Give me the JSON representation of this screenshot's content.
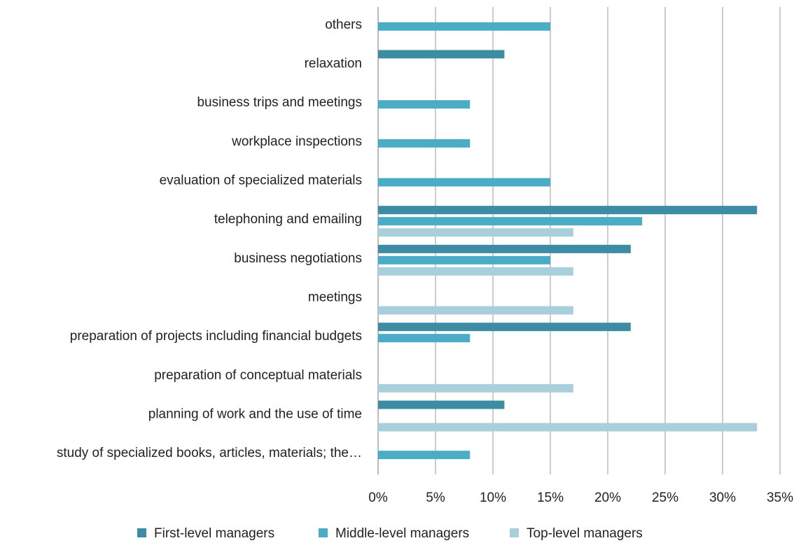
{
  "chart_data": {
    "type": "barh",
    "categories": [
      "others",
      "relaxation",
      "business trips and meetings",
      "workplace inspections",
      "evaluation of specialized materials",
      "telephoning and emailing",
      "business negotiations",
      "meetings",
      "preparation of projects including financial budgets",
      "preparation of conceptual materials",
      "planning of work and the use of time",
      "study of specialized books, articles, materials; the…"
    ],
    "series": [
      {
        "name": "First-level managers",
        "color": "#3d8ca3",
        "values": [
          null,
          11,
          null,
          null,
          null,
          33,
          22,
          null,
          22,
          null,
          11,
          null
        ]
      },
      {
        "name": "Middle-level managers",
        "color": "#4bacc6",
        "values": [
          15,
          null,
          8,
          8,
          15,
          23,
          15,
          null,
          8,
          null,
          null,
          8
        ]
      },
      {
        "name": "Top-level managers",
        "color": "#a9cfdc",
        "values": [
          null,
          null,
          null,
          null,
          null,
          17,
          17,
          17,
          null,
          17,
          33,
          null
        ]
      }
    ],
    "xlim": [
      0,
      35
    ],
    "xticks": [
      {
        "value": 0,
        "label": "0%"
      },
      {
        "value": 5,
        "label": "5%"
      },
      {
        "value": 10,
        "label": "10%"
      },
      {
        "value": 15,
        "label": "15%"
      },
      {
        "value": 20,
        "label": "20%"
      },
      {
        "value": 25,
        "label": "25%"
      },
      {
        "value": 30,
        "label": "30%"
      },
      {
        "value": 35,
        "label": "35%"
      }
    ],
    "grid": true,
    "legend": "bottom"
  }
}
